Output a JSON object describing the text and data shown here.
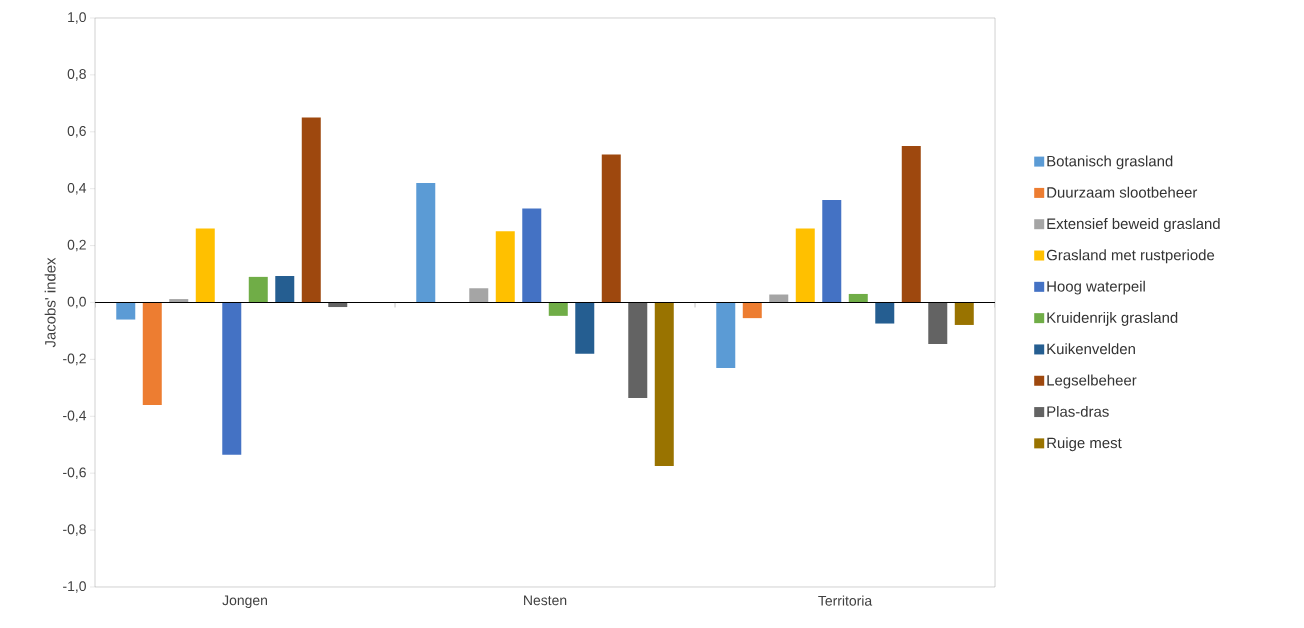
{
  "chart_data": {
    "type": "bar",
    "ylabel": "Jacobs' index",
    "categories": [
      "Jongen",
      "Nesten",
      "Territoria"
    ],
    "ylim": [
      -1.0,
      1.0
    ],
    "yticks": [
      {
        "value": -1.0,
        "label": "-1,0"
      },
      {
        "value": -0.8,
        "label": "-0,8"
      },
      {
        "value": -0.6,
        "label": "-0,6"
      },
      {
        "value": -0.4,
        "label": "-0,4"
      },
      {
        "value": -0.2,
        "label": "-0,2"
      },
      {
        "value": 0.0,
        "label": "0,0"
      },
      {
        "value": 0.2,
        "label": "0,2"
      },
      {
        "value": 0.4,
        "label": "0,4"
      },
      {
        "value": 0.6,
        "label": "0,6"
      },
      {
        "value": 0.8,
        "label": "0,8"
      },
      {
        "value": 1.0,
        "label": "1,0"
      }
    ],
    "legend": "right",
    "series": [
      {
        "name": "Botanisch grasland",
        "color": "#5b9bd5",
        "values": [
          -0.06,
          0.42,
          -0.23
        ]
      },
      {
        "name": "Duurzaam slootbeheer",
        "color": "#ed7d31",
        "values": [
          -0.36,
          null,
          -0.055
        ]
      },
      {
        "name": "Extensief beweid grasland",
        "color": "#a5a5a5",
        "values": [
          0.012,
          0.05,
          0.028
        ]
      },
      {
        "name": "Grasland met rustperiode",
        "color": "#ffc000",
        "values": [
          0.26,
          0.25,
          0.26
        ]
      },
      {
        "name": "Hoog waterpeil",
        "color": "#4472c4",
        "values": [
          -0.535,
          0.33,
          0.36
        ]
      },
      {
        "name": "Kruidenrijk grasland",
        "color": "#70ad47",
        "values": [
          0.09,
          -0.047,
          0.03
        ]
      },
      {
        "name": "Kuikenvelden",
        "color": "#255e91",
        "values": [
          0.093,
          -0.18,
          -0.074
        ]
      },
      {
        "name": "Legselbeheer",
        "color": "#9e480e",
        "values": [
          0.65,
          0.52,
          0.55
        ]
      },
      {
        "name": "Plas-dras",
        "color": "#636363",
        "values": [
          -0.016,
          -0.336,
          -0.146
        ]
      },
      {
        "name": "Ruige mest",
        "color": "#997300",
        "values": [
          null,
          -0.575,
          -0.079
        ]
      }
    ]
  }
}
